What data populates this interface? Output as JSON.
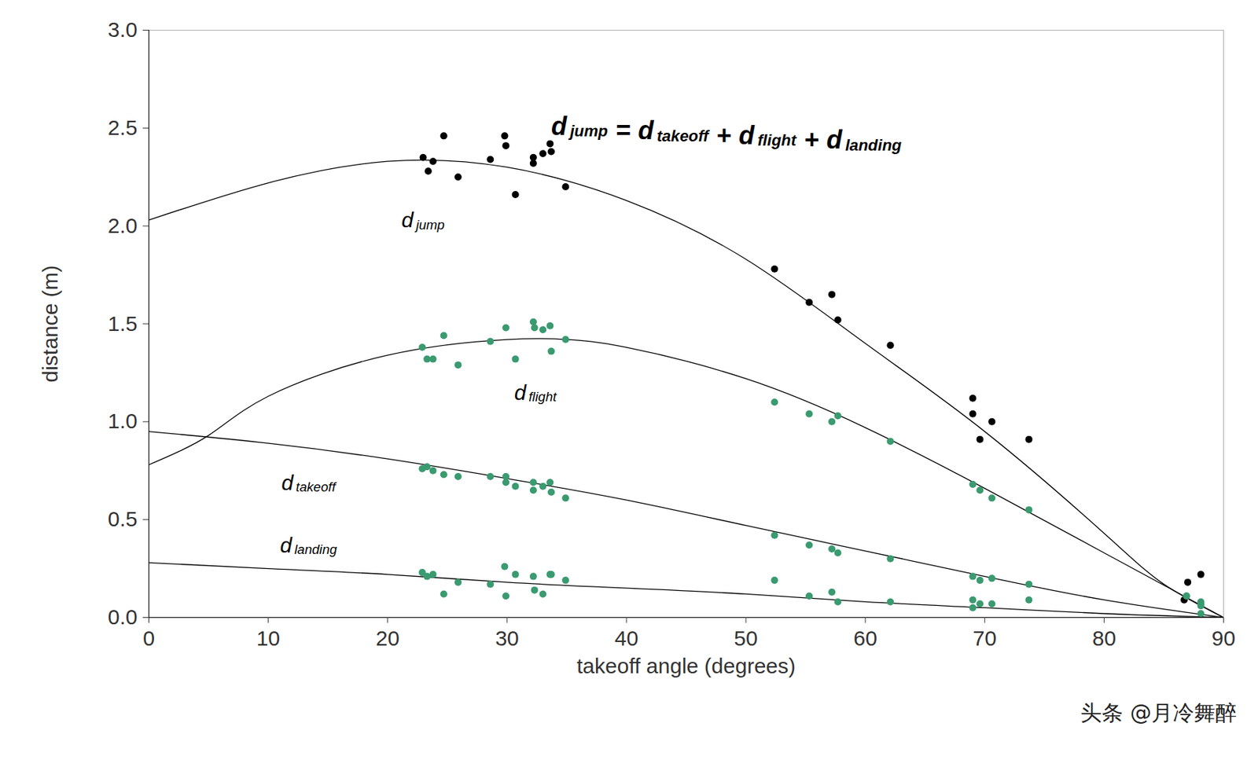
{
  "chart_data": {
    "type": "scatter",
    "x_label": "takeoff angle (degrees)",
    "y_label": "distance (m)",
    "annotation": "d jump = d takeoff + d flight + d landing",
    "annotation_x": 48.4,
    "annotation_y": 2.5,
    "caption": "头条 @月冷舞醉",
    "xlim": [
      0,
      90
    ],
    "ylim": [
      0,
      3
    ],
    "xticks": [
      0,
      10,
      20,
      30,
      40,
      50,
      60,
      70,
      80,
      90
    ],
    "yticks": [
      {
        "value": 0,
        "label": "0.0"
      },
      0.5,
      {
        "value": 1,
        "label": "1.0"
      },
      1.5,
      {
        "value": 2,
        "label": "2.0"
      },
      2.5,
      {
        "value": 3,
        "label": "3.0"
      }
    ],
    "grid": false,
    "marker": "circle",
    "series": [
      {
        "name": "d jump",
        "color": "#000000",
        "label_x": 23.0,
        "label_y": 2.02,
        "x": [
          22.97,
          23.4,
          23.8,
          24.7,
          25.9,
          28.6,
          29.8,
          29.9,
          30.7,
          32.2,
          32.2,
          33.0,
          33.6,
          33.7,
          34.9,
          52.4,
          55.3,
          57.2,
          57.7,
          62.1,
          69.0,
          69.0,
          69.6,
          70.6,
          73.7,
          87.0,
          86.7,
          88.1
        ],
        "values": [
          2.35,
          2.28,
          2.33,
          2.46,
          2.25,
          2.34,
          2.46,
          2.41,
          2.16,
          2.35,
          2.32,
          2.37,
          2.42,
          2.38,
          2.2,
          1.78,
          1.61,
          1.65,
          1.52,
          1.39,
          1.12,
          1.04,
          0.91,
          1.0,
          0.91,
          0.18,
          0.09,
          0.22
        ],
        "fit_x": [
          0,
          10,
          20,
          30,
          40,
          50,
          60,
          70,
          80,
          85,
          90
        ],
        "fit_values": [
          2.03,
          2.22,
          2.33,
          2.3,
          2.13,
          1.83,
          1.4,
          0.95,
          0.43,
          0.17,
          0.0
        ]
      },
      {
        "name": "d flight",
        "color": "#3a9a70",
        "label_x": 32.4,
        "label_y": 1.14,
        "x": [
          22.9,
          23.3,
          23.8,
          24.7,
          25.9,
          28.6,
          29.9,
          30.7,
          32.2,
          32.3,
          33.0,
          33.6,
          33.7,
          34.9,
          52.4,
          55.3,
          57.2,
          57.7,
          62.1,
          69.0,
          69.6,
          70.6,
          73.7,
          86.9,
          88.1
        ],
        "values": [
          1.38,
          1.32,
          1.32,
          1.44,
          1.29,
          1.41,
          1.48,
          1.32,
          1.51,
          1.48,
          1.47,
          1.49,
          1.36,
          1.42,
          1.1,
          1.04,
          1.0,
          1.03,
          0.9,
          0.68,
          0.65,
          0.61,
          0.55,
          0.11,
          0.07
        ],
        "fit_x": [
          0,
          5,
          10,
          20,
          30,
          35,
          40,
          50,
          60,
          70,
          80,
          90
        ],
        "fit_values": [
          0.78,
          0.93,
          1.13,
          1.34,
          1.42,
          1.42,
          1.38,
          1.22,
          0.97,
          0.66,
          0.33,
          0.0
        ]
      },
      {
        "name": "d takeoff",
        "color": "#3a9a70",
        "label_x": 13.4,
        "label_y": 0.68,
        "x": [
          22.9,
          23.3,
          23.8,
          24.7,
          25.9,
          28.6,
          29.9,
          29.9,
          30.7,
          32.2,
          32.2,
          33.0,
          33.6,
          33.7,
          34.9,
          52.4,
          55.3,
          57.2,
          57.7,
          62.1,
          69.0,
          69.6,
          70.6,
          73.7,
          86.9,
          88.1
        ],
        "values": [
          0.76,
          0.77,
          0.75,
          0.73,
          0.72,
          0.72,
          0.72,
          0.69,
          0.67,
          0.69,
          0.65,
          0.67,
          0.69,
          0.64,
          0.61,
          0.42,
          0.37,
          0.35,
          0.33,
          0.3,
          0.21,
          0.19,
          0.2,
          0.17,
          0.11,
          0.08
        ],
        "fit_x": [
          0,
          10,
          20,
          30,
          40,
          50,
          60,
          70,
          80,
          90
        ],
        "fit_values": [
          0.95,
          0.89,
          0.81,
          0.71,
          0.6,
          0.47,
          0.34,
          0.21,
          0.09,
          0.0
        ]
      },
      {
        "name": "d landing",
        "color": "#3a9a70",
        "label_x": 13.4,
        "label_y": 0.36,
        "x": [
          22.9,
          23.3,
          23.8,
          24.7,
          25.9,
          28.6,
          29.8,
          29.9,
          30.7,
          32.2,
          32.3,
          33.0,
          33.6,
          33.7,
          34.9,
          52.4,
          55.3,
          57.2,
          57.7,
          62.1,
          69.0,
          69.0,
          69.6,
          70.6,
          73.7,
          88.1,
          88.1
        ],
        "values": [
          0.23,
          0.21,
          0.22,
          0.12,
          0.18,
          0.17,
          0.26,
          0.11,
          0.22,
          0.21,
          0.14,
          0.12,
          0.22,
          0.22,
          0.19,
          0.19,
          0.11,
          0.13,
          0.08,
          0.08,
          0.09,
          0.05,
          0.07,
          0.07,
          0.09,
          0.06,
          0.02
        ],
        "fit_x": [
          0,
          10,
          20,
          30,
          40,
          50,
          60,
          70,
          80,
          90
        ],
        "fit_values": [
          0.28,
          0.25,
          0.22,
          0.18,
          0.15,
          0.12,
          0.08,
          0.05,
          0.02,
          0.0
        ]
      }
    ]
  }
}
